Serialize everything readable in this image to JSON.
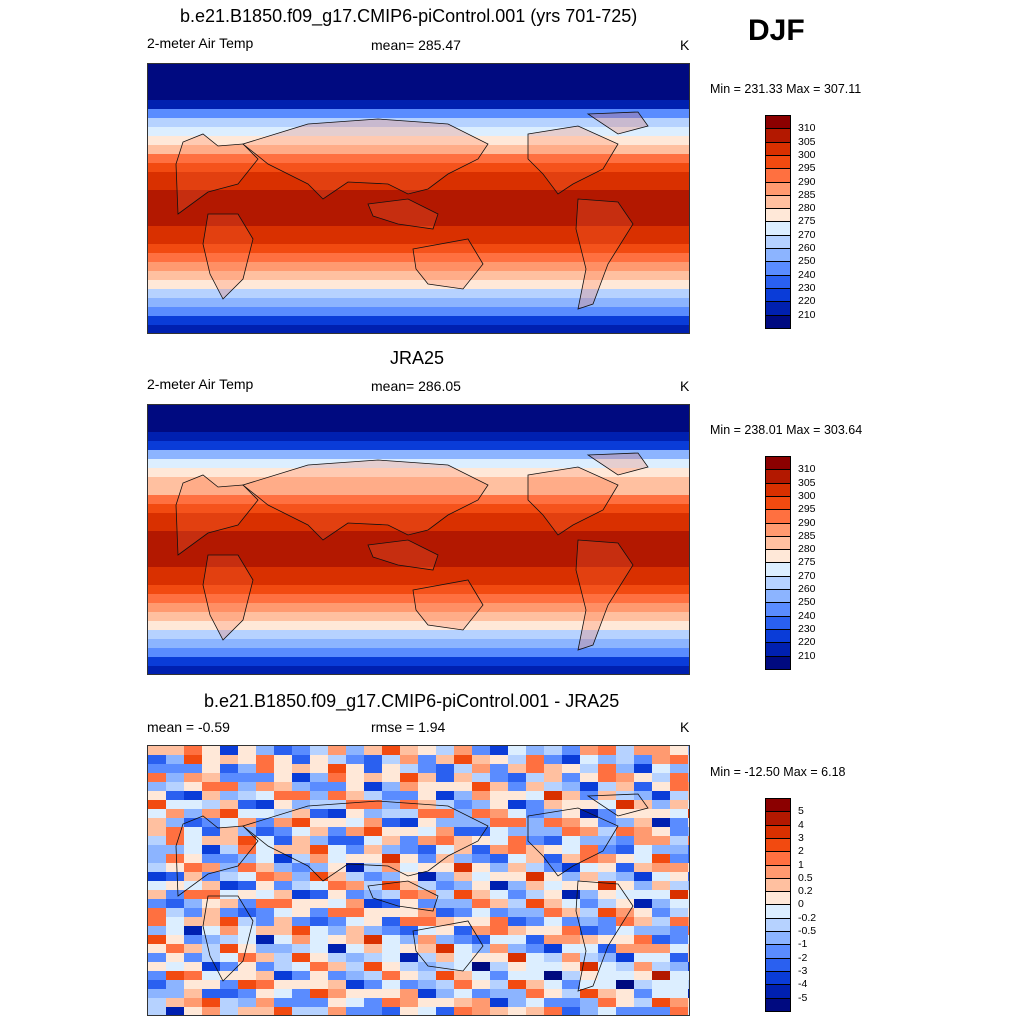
{
  "season": "DJF",
  "panels": [
    {
      "title": "b.e21.B1850.f09_g17.CMIP6-piControl.001 (yrs 701-725)",
      "left_label": "2-meter Air Temp",
      "center_label": "mean= 285.47",
      "units": "K",
      "minmax": "Min = 231.33 Max = 307.11",
      "kind": "abs",
      "colorbar": {
        "labels": [
          "310",
          "305",
          "300",
          "295",
          "290",
          "285",
          "280",
          "275",
          "270",
          "260",
          "250",
          "240",
          "230",
          "220",
          "210"
        ],
        "colors": [
          "#8b0000",
          "#b31800",
          "#d93000",
          "#f24a10",
          "#ff7040",
          "#ff9a70",
          "#ffc0a0",
          "#ffe8d8",
          "#dceeff",
          "#b6d2ff",
          "#8cb4ff",
          "#5a8cff",
          "#2a60f0",
          "#0a3cd8",
          "#0020b0",
          "#000a80"
        ]
      }
    },
    {
      "title": "JRA25",
      "left_label": "2-meter Air Temp",
      "center_label": "mean= 286.05",
      "units": "K",
      "minmax": "Min = 238.01 Max = 303.64",
      "kind": "abs",
      "colorbar": {
        "labels": [
          "310",
          "305",
          "300",
          "295",
          "290",
          "285",
          "280",
          "275",
          "270",
          "260",
          "250",
          "240",
          "230",
          "220",
          "210"
        ],
        "colors": [
          "#8b0000",
          "#b31800",
          "#d93000",
          "#f24a10",
          "#ff7040",
          "#ff9a70",
          "#ffc0a0",
          "#ffe8d8",
          "#dceeff",
          "#b6d2ff",
          "#8cb4ff",
          "#5a8cff",
          "#2a60f0",
          "#0a3cd8",
          "#0020b0",
          "#000a80"
        ]
      }
    },
    {
      "title": "b.e21.B1850.f09_g17.CMIP6-piControl.001 - JRA25",
      "left_label": "mean =  -0.59",
      "center_label": "rmse =   1.94",
      "units": "K",
      "minmax": "Min = -12.50 Max =   6.18",
      "kind": "diff",
      "colorbar": {
        "labels": [
          "5",
          "4",
          "3",
          "2",
          "1",
          "0.5",
          "0.2",
          "0",
          "-0.2",
          "-0.5",
          "-1",
          "-2",
          "-3",
          "-4",
          "-5"
        ],
        "colors": [
          "#8b0000",
          "#b31800",
          "#d93000",
          "#f24a10",
          "#ff7040",
          "#ff9a70",
          "#ffc0a0",
          "#ffe8d8",
          "#dceeff",
          "#b6d2ff",
          "#8cb4ff",
          "#5a8cff",
          "#2a60f0",
          "#0a3cd8",
          "#0020b0",
          "#000a80"
        ]
      }
    }
  ]
}
